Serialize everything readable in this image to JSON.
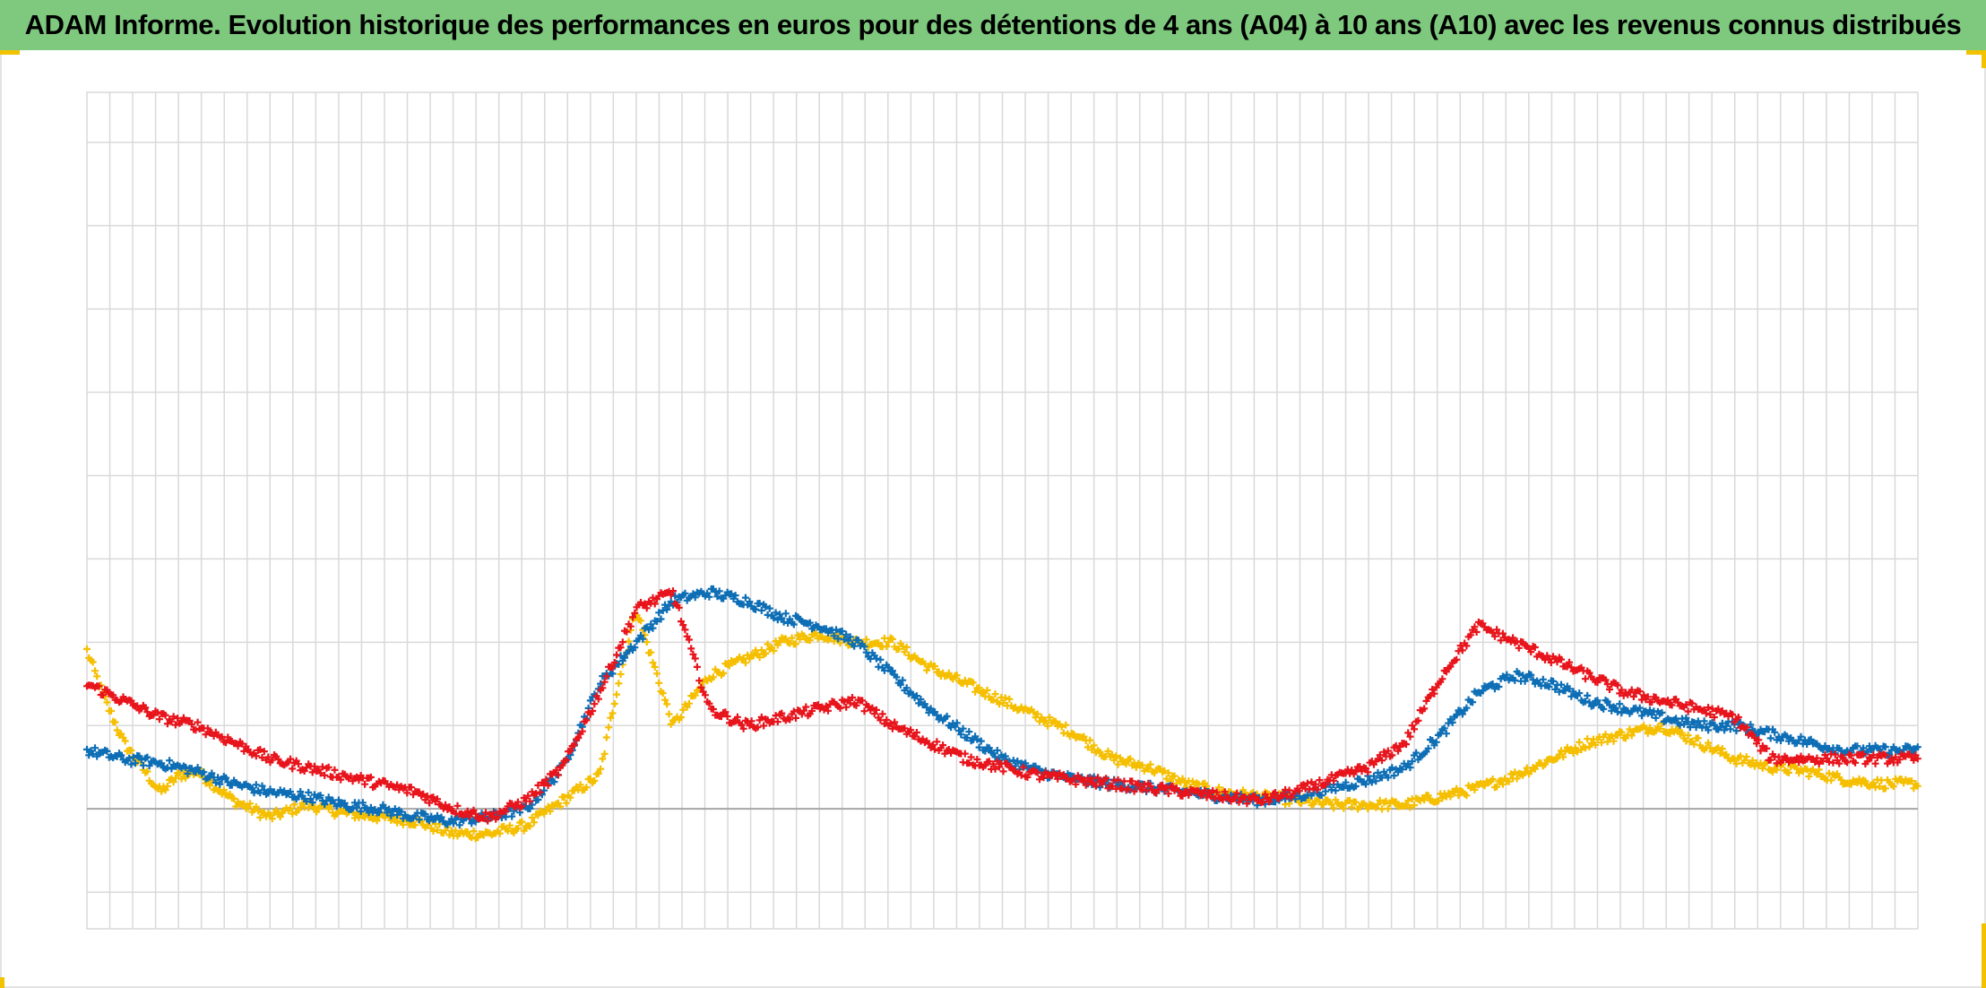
{
  "chart_data": {
    "type": "scatter",
    "title": "ADAM Informe. Evolution historique des performances en euros pour des détentions de 4 ans (A04) à 10 ans (A10) avec les revenus connus distribués",
    "xlabel": "",
    "ylabel": "",
    "grid": true,
    "legend": "none",
    "xlim": [
      0,
      1000
    ],
    "ylim": [
      -1.44,
      8.6
    ],
    "x_gridlines": 12.5,
    "y_gridlines": [
      -1,
      0,
      1,
      2,
      3,
      4,
      5,
      6,
      7,
      8
    ],
    "marker": "plus",
    "series": [
      {
        "color": "#f5bf00",
        "points": [
          [
            0,
            1.9
          ],
          [
            10,
            1.3
          ],
          [
            20,
            0.8
          ],
          [
            30,
            0.5
          ],
          [
            40,
            0.2
          ],
          [
            50,
            0.4
          ],
          [
            60,
            0.45
          ],
          [
            80,
            0.1
          ],
          [
            100,
            -0.1
          ],
          [
            120,
            0.05
          ],
          [
            140,
            -0.05
          ],
          [
            160,
            -0.1
          ],
          [
            180,
            -0.15
          ],
          [
            200,
            -0.3
          ],
          [
            220,
            -0.3
          ],
          [
            240,
            -0.2
          ],
          [
            260,
            0.1
          ],
          [
            280,
            0.4
          ],
          [
            290,
            1.5
          ],
          [
            300,
            2.4
          ],
          [
            320,
            1.0
          ],
          [
            340,
            1.6
          ],
          [
            360,
            1.8
          ],
          [
            380,
            2.0
          ],
          [
            400,
            2.1
          ],
          [
            420,
            2.0
          ],
          [
            440,
            2.0
          ],
          [
            460,
            1.7
          ],
          [
            480,
            1.5
          ],
          [
            500,
            1.3
          ],
          [
            520,
            1.1
          ],
          [
            540,
            0.9
          ],
          [
            560,
            0.6
          ],
          [
            580,
            0.5
          ],
          [
            600,
            0.3
          ],
          [
            620,
            0.2
          ],
          [
            640,
            0.15
          ],
          [
            660,
            0.1
          ],
          [
            680,
            0.05
          ],
          [
            700,
            0.05
          ],
          [
            720,
            0.05
          ],
          [
            740,
            0.15
          ],
          [
            760,
            0.25
          ],
          [
            780,
            0.4
          ],
          [
            800,
            0.6
          ],
          [
            820,
            0.8
          ],
          [
            840,
            0.9
          ],
          [
            860,
            1.0
          ],
          [
            880,
            0.8
          ],
          [
            900,
            0.6
          ],
          [
            920,
            0.5
          ],
          [
            940,
            0.45
          ],
          [
            960,
            0.35
          ],
          [
            980,
            0.3
          ],
          [
            1000,
            0.3
          ]
        ]
      },
      {
        "color": "#0d6eb5",
        "points": [
          [
            0,
            0.7
          ],
          [
            20,
            0.6
          ],
          [
            40,
            0.55
          ],
          [
            60,
            0.45
          ],
          [
            80,
            0.3
          ],
          [
            100,
            0.2
          ],
          [
            120,
            0.15
          ],
          [
            140,
            0.05
          ],
          [
            160,
            0.0
          ],
          [
            180,
            -0.1
          ],
          [
            200,
            -0.15
          ],
          [
            220,
            -0.1
          ],
          [
            240,
            0.0
          ],
          [
            260,
            0.5
          ],
          [
            280,
            1.5
          ],
          [
            300,
            2.0
          ],
          [
            320,
            2.5
          ],
          [
            340,
            2.6
          ],
          [
            360,
            2.5
          ],
          [
            380,
            2.3
          ],
          [
            400,
            2.2
          ],
          [
            420,
            2.0
          ],
          [
            440,
            1.6
          ],
          [
            460,
            1.2
          ],
          [
            480,
            0.9
          ],
          [
            500,
            0.6
          ],
          [
            520,
            0.45
          ],
          [
            540,
            0.35
          ],
          [
            560,
            0.3
          ],
          [
            580,
            0.25
          ],
          [
            600,
            0.2
          ],
          [
            620,
            0.15
          ],
          [
            640,
            0.1
          ],
          [
            660,
            0.15
          ],
          [
            680,
            0.25
          ],
          [
            700,
            0.35
          ],
          [
            720,
            0.5
          ],
          [
            740,
            0.9
          ],
          [
            760,
            1.4
          ],
          [
            780,
            1.6
          ],
          [
            800,
            1.5
          ],
          [
            820,
            1.3
          ],
          [
            840,
            1.2
          ],
          [
            860,
            1.1
          ],
          [
            880,
            1.0
          ],
          [
            900,
            1.0
          ],
          [
            920,
            0.9
          ],
          [
            940,
            0.8
          ],
          [
            960,
            0.7
          ],
          [
            980,
            0.7
          ],
          [
            1000,
            0.7
          ]
        ]
      },
      {
        "color": "#e8141c",
        "points": [
          [
            0,
            1.5
          ],
          [
            20,
            1.3
          ],
          [
            40,
            1.1
          ],
          [
            60,
            1.0
          ],
          [
            80,
            0.8
          ],
          [
            100,
            0.6
          ],
          [
            120,
            0.5
          ],
          [
            140,
            0.4
          ],
          [
            160,
            0.3
          ],
          [
            180,
            0.2
          ],
          [
            200,
            0.0
          ],
          [
            220,
            -0.1
          ],
          [
            240,
            0.1
          ],
          [
            260,
            0.5
          ],
          [
            280,
            1.4
          ],
          [
            300,
            2.4
          ],
          [
            320,
            2.6
          ],
          [
            340,
            1.2
          ],
          [
            360,
            1.0
          ],
          [
            380,
            1.1
          ],
          [
            400,
            1.2
          ],
          [
            420,
            1.3
          ],
          [
            440,
            1.0
          ],
          [
            460,
            0.8
          ],
          [
            480,
            0.6
          ],
          [
            500,
            0.5
          ],
          [
            520,
            0.4
          ],
          [
            540,
            0.35
          ],
          [
            560,
            0.3
          ],
          [
            580,
            0.25
          ],
          [
            600,
            0.2
          ],
          [
            620,
            0.15
          ],
          [
            640,
            0.1
          ],
          [
            660,
            0.2
          ],
          [
            680,
            0.35
          ],
          [
            700,
            0.5
          ],
          [
            720,
            0.8
          ],
          [
            740,
            1.6
          ],
          [
            760,
            2.2
          ],
          [
            780,
            2.0
          ],
          [
            800,
            1.8
          ],
          [
            820,
            1.6
          ],
          [
            840,
            1.4
          ],
          [
            860,
            1.3
          ],
          [
            880,
            1.2
          ],
          [
            900,
            1.1
          ],
          [
            920,
            0.6
          ],
          [
            940,
            0.6
          ],
          [
            960,
            0.6
          ],
          [
            980,
            0.6
          ],
          [
            1000,
            0.6
          ]
        ]
      }
    ]
  }
}
